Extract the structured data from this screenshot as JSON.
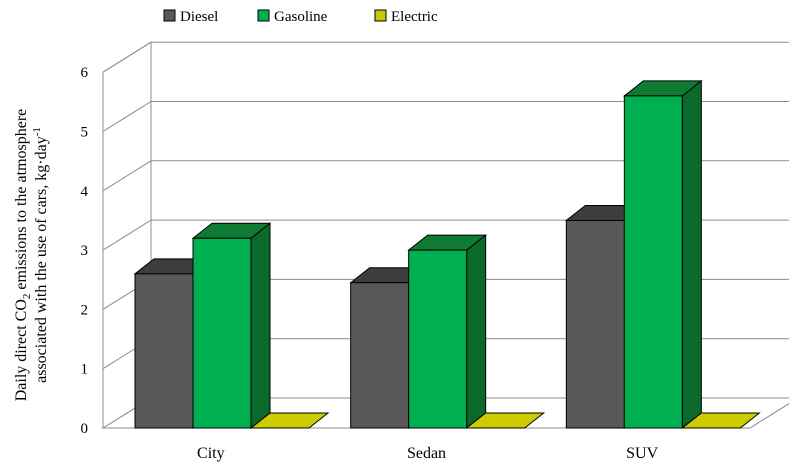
{
  "chart_data": {
    "type": "bar",
    "categories": [
      "City",
      "Sedan",
      "SUV"
    ],
    "series": [
      {
        "name": "Diesel",
        "values": [
          2.6,
          2.45,
          3.5
        ]
      },
      {
        "name": "Gasoline",
        "values": [
          3.2,
          3.0,
          5.6
        ]
      },
      {
        "name": "Electric",
        "values": [
          0,
          0,
          0
        ]
      }
    ],
    "colors": {
      "Diesel": {
        "front": "#595959",
        "top": "#3d3d3d",
        "side": "#333333"
      },
      "Gasoline": {
        "front": "#00b050",
        "top": "#0f7a32",
        "side": "#0b6a2a"
      },
      "Electric": {
        "front": "#c8c800",
        "top": "#cccc00",
        "side": "#a6a600"
      }
    },
    "ylabel_line1_prefix": "Daily direct CO",
    "ylabel_line1_sub": "2",
    "ylabel_line1_suffix": " emissions to the atmosphere",
    "ylabel_line2_prefix": "associated with the use of cars, kg·day",
    "ylabel_line2_sup": "-1",
    "ylim": [
      0,
      6
    ],
    "yticks": [
      "0",
      "1",
      "2",
      "3",
      "4",
      "5",
      "6"
    ],
    "grid": true,
    "legend_position": "top"
  }
}
